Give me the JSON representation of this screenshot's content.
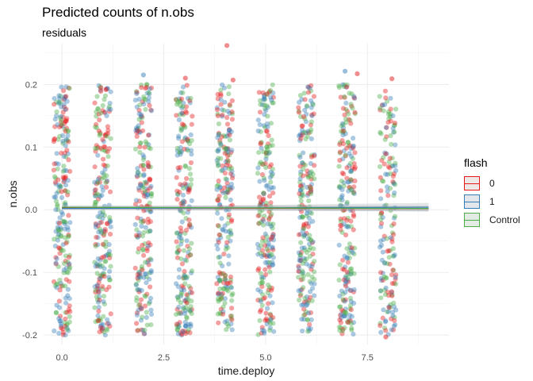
{
  "title": "Predicted counts of n.obs",
  "subtitle": "residuals",
  "chart_data": {
    "type": "scatter",
    "xlabel": "time.deploy",
    "ylabel": "n.obs",
    "xlim": [
      -0.45,
      9.5
    ],
    "ylim": [
      -0.215,
      0.265
    ],
    "x_ticks": [
      0.0,
      2.5,
      5.0,
      7.5
    ],
    "x_tick_labels": [
      "0.0",
      "2.5",
      "5.0",
      "7.5"
    ],
    "y_ticks": [
      -0.2,
      -0.1,
      0.0,
      0.1,
      0.2
    ],
    "y_tick_labels": [
      "-0.2",
      "-0.1",
      "0.0",
      "0.1",
      "0.2"
    ],
    "grid": true,
    "legend_position": "right",
    "legend_title": "flash",
    "x_groups": [
      0,
      1,
      2,
      3,
      4,
      5,
      6,
      7,
      8
    ],
    "band_half_width": 0.2,
    "residual_range": [
      -0.2,
      0.2
    ],
    "outliers": [
      {
        "x": 2.0,
        "y": 0.215,
        "series": "1"
      },
      {
        "x": 3.03,
        "y": 0.21,
        "series": "0"
      },
      {
        "x": 4.05,
        "y": 0.262,
        "series": "0"
      },
      {
        "x": 4.2,
        "y": 0.207,
        "series": "0"
      },
      {
        "x": 6.95,
        "y": 0.221,
        "series": "1"
      },
      {
        "x": 7.25,
        "y": 0.217,
        "series": "0"
      },
      {
        "x": 7.95,
        "y": -0.203,
        "series": "0"
      },
      {
        "x": 8.1,
        "y": 0.209,
        "series": "0"
      }
    ],
    "series": [
      {
        "name": "0",
        "color": "#E41A1C",
        "fit_line": [
          [
            0,
            0.003
          ],
          [
            9,
            0.002
          ]
        ],
        "band_halfwidth": [
          0.003,
          0.004
        ]
      },
      {
        "name": "1",
        "color": "#377EB8",
        "fit_line": [
          [
            0,
            0.002
          ],
          [
            9,
            0.004
          ]
        ],
        "band_halfwidth": [
          0.002,
          0.007
        ]
      },
      {
        "name": "Control",
        "color": "#4DAF4A",
        "fit_line": [
          [
            0,
            0.004
          ],
          [
            9,
            0.002
          ]
        ],
        "band_halfwidth": [
          0.003,
          0.004
        ]
      }
    ]
  }
}
